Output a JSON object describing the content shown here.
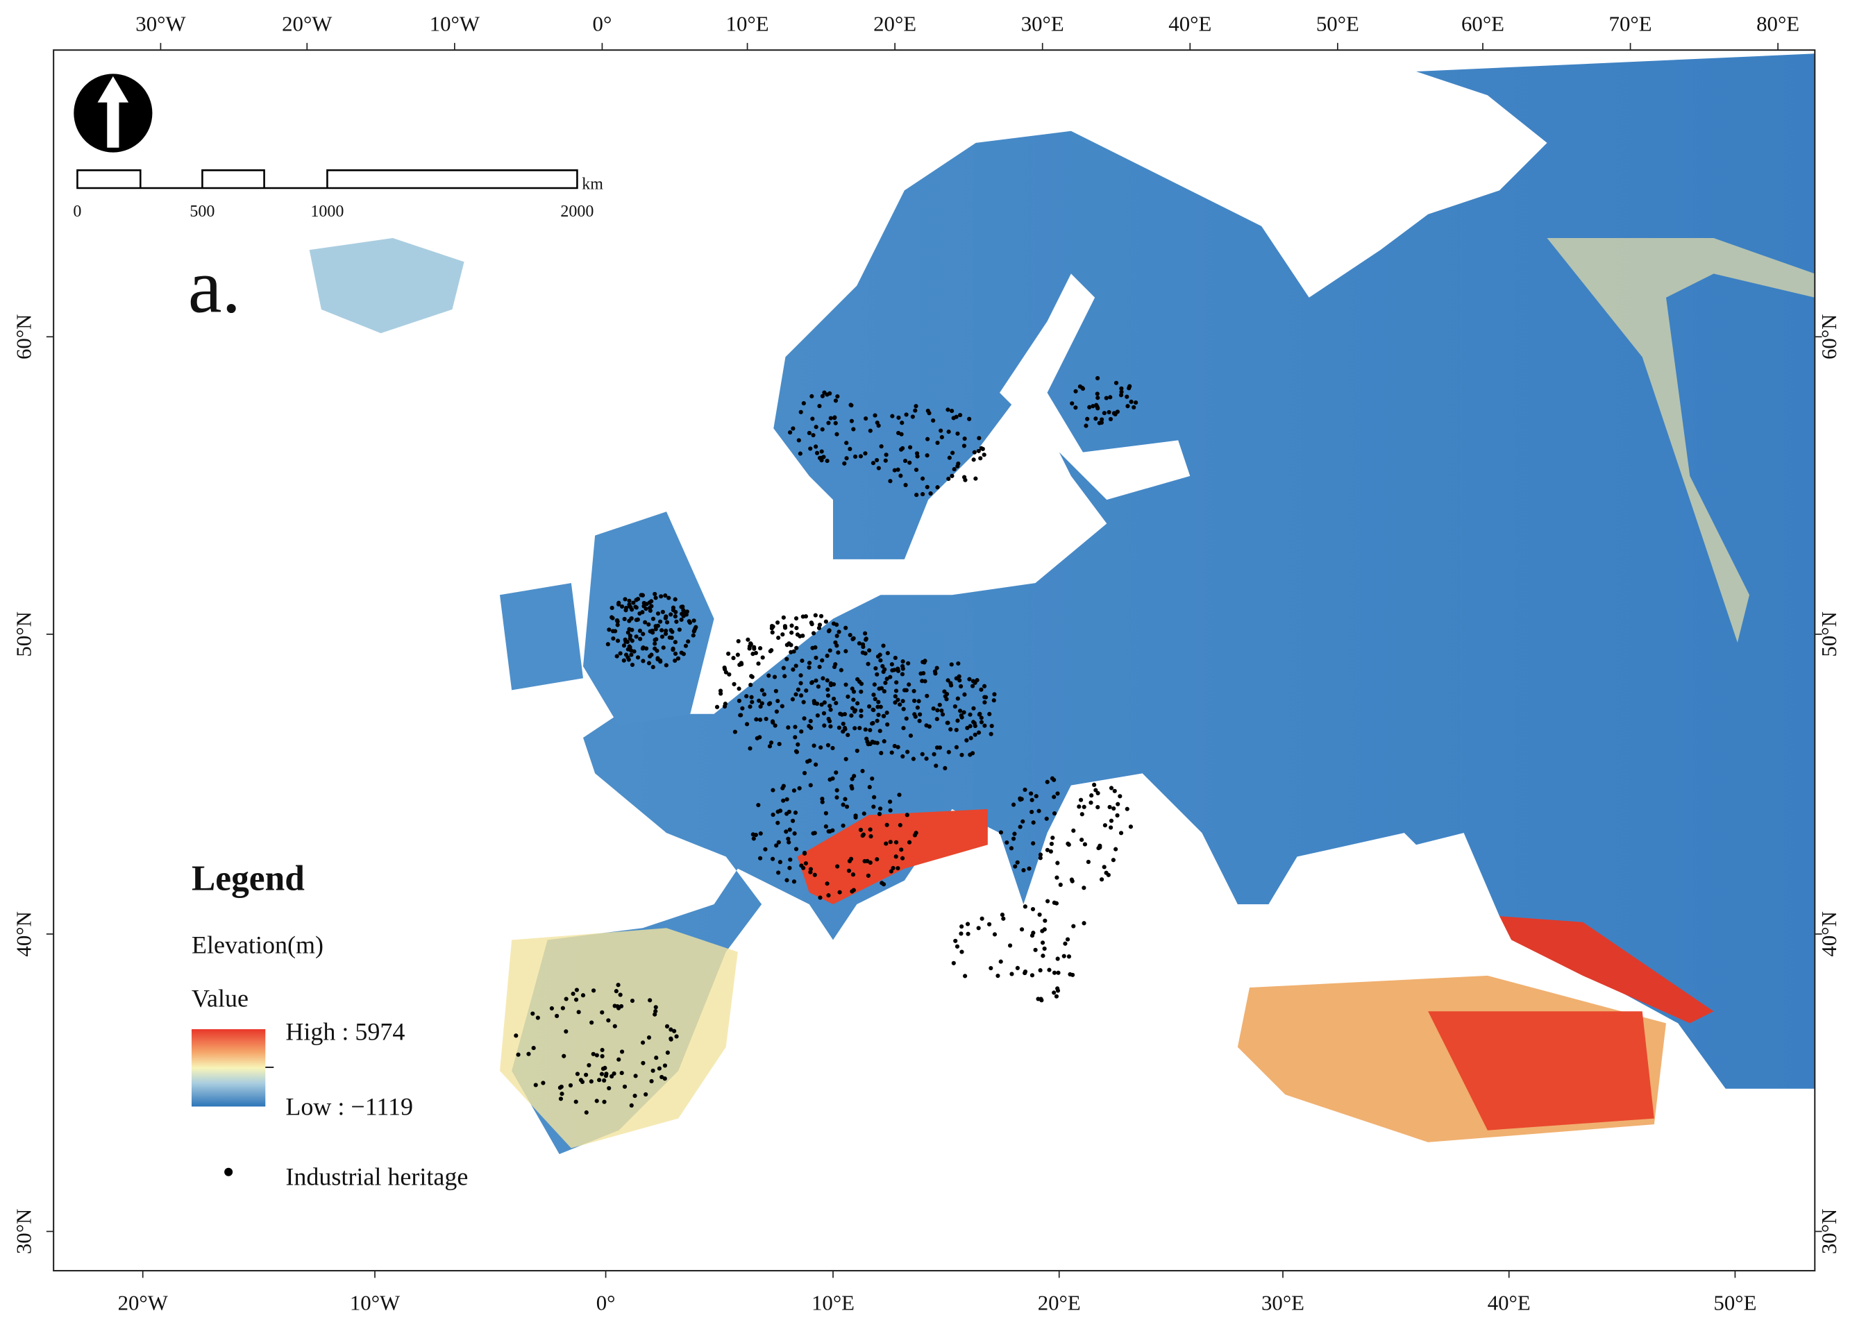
{
  "panel_label": "a.",
  "graticule": {
    "top": [
      "30°W",
      "20°W",
      "10°W",
      "0°",
      "10°E",
      "20°E",
      "30°E",
      "40°E",
      "50°E",
      "60°E",
      "70°E",
      "80°E"
    ],
    "bottom": [
      "20°W",
      "10°W",
      "0°",
      "10°E",
      "20°E",
      "30°E",
      "40°E",
      "50°E"
    ],
    "left": [
      "60°N",
      "50°N",
      "40°N",
      "30°N"
    ],
    "right": [
      "60°N",
      "50°N",
      "40°N",
      "30°N"
    ]
  },
  "scale_bar": {
    "labels": [
      "0",
      "500",
      "1000",
      "2000"
    ],
    "unit": "km"
  },
  "legend": {
    "title": "Legend",
    "layer": "Elevation(m)",
    "field": "Value",
    "high": "High : 5974",
    "low": "Low : −1119",
    "points": "Industrial heritage"
  }
}
